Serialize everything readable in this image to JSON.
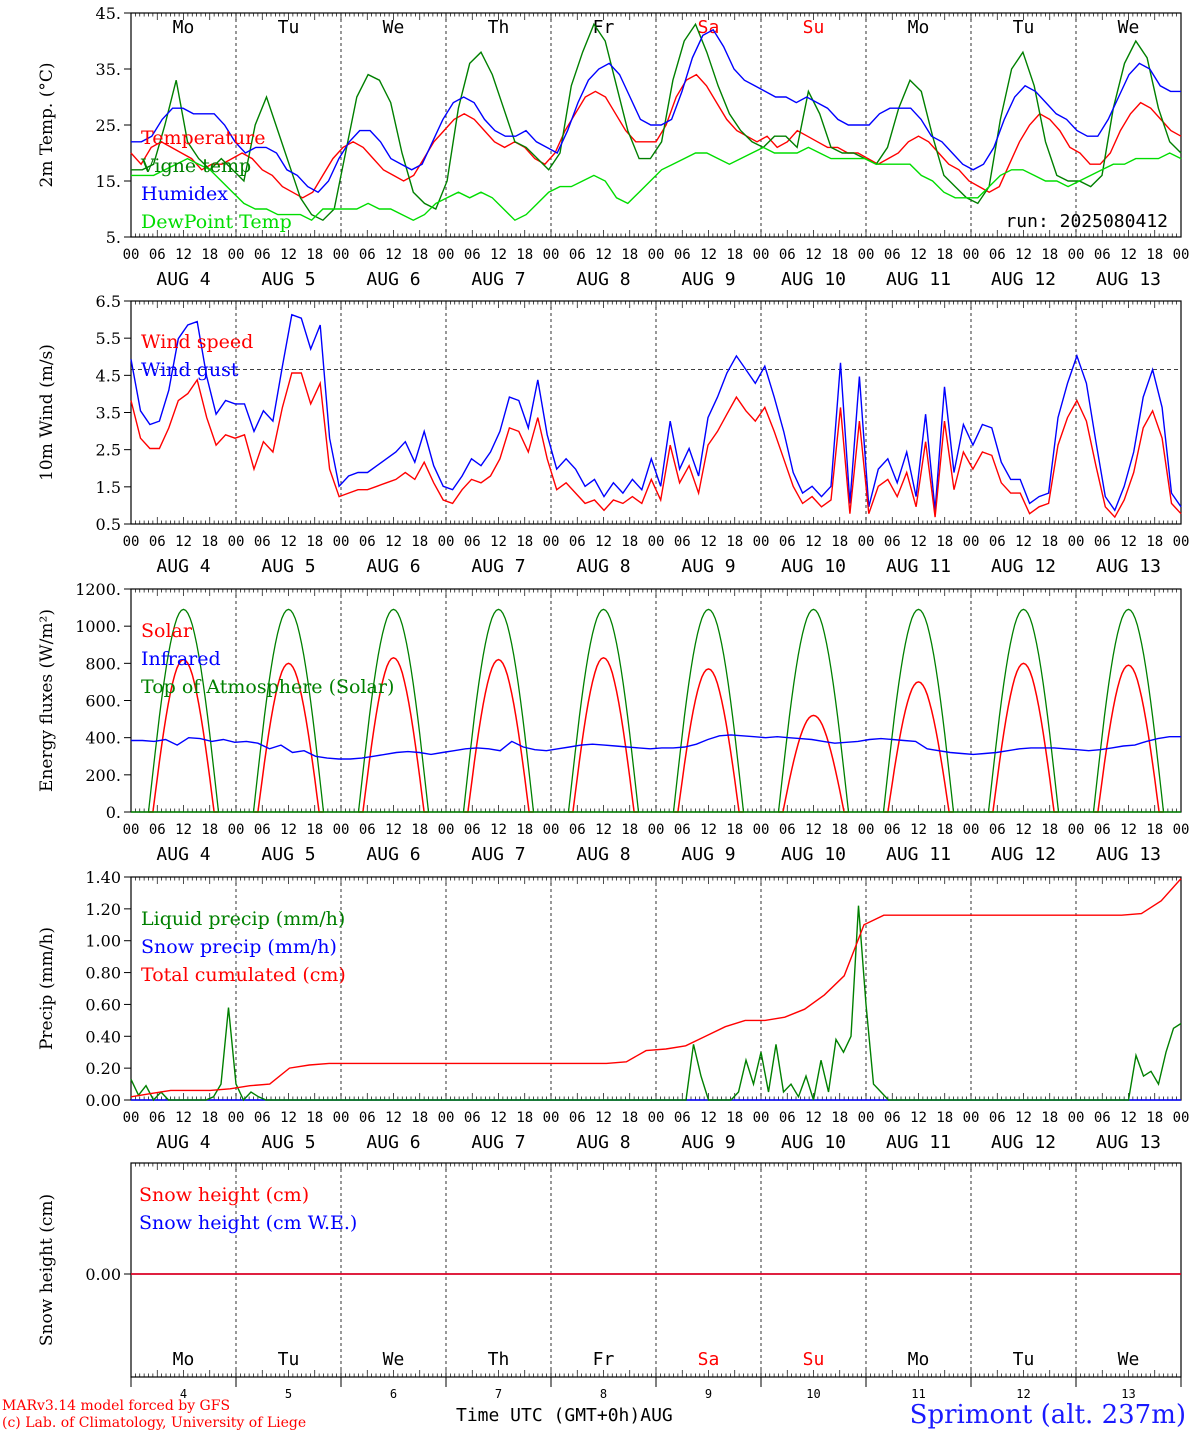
{
  "site": "Sprimont (alt. 237m)",
  "credit": [
    "MARv3.14 model forced by GFS",
    "(c) Lab. of Climatology, University of Liege"
  ],
  "time_axis": {
    "label": "Time UTC (GMT+0h)",
    "month": "AUG",
    "dates": [
      4,
      5,
      6,
      7,
      8,
      9,
      10,
      11,
      12,
      13
    ],
    "hour_ticks": [
      "00",
      "06",
      "12",
      "18"
    ],
    "weekdays": [
      "Mo",
      "Tu",
      "We",
      "Th",
      "Fr",
      "Sa",
      "Su",
      "Mo",
      "Tu",
      "We"
    ],
    "weekend_color": "#ff0000"
  },
  "chart_data": [
    {
      "type": "line",
      "ylabel": "2m Temp. (°C)",
      "ylim": [
        5,
        45
      ],
      "yticks": [
        "45.",
        "35.",
        "25.",
        "15.",
        "5."
      ],
      "run": "run: 2025080412",
      "series": [
        {
          "name": "Temperature",
          "color": "#ff0000",
          "values": [
            20,
            18,
            21,
            22,
            21,
            20,
            19,
            17,
            18,
            18,
            19,
            20,
            19,
            17,
            16,
            14,
            13,
            12,
            13,
            16,
            19,
            21,
            22,
            21,
            19,
            17,
            16,
            15,
            16,
            19,
            22,
            24,
            26,
            27,
            26,
            24,
            22,
            21,
            22,
            21,
            19,
            18,
            20,
            24,
            27,
            30,
            31,
            30,
            27,
            24,
            22,
            22,
            22,
            25,
            30,
            33,
            34,
            32,
            29,
            26,
            24,
            23,
            22,
            23,
            21,
            22,
            24,
            23,
            22,
            21,
            21,
            20,
            20,
            19,
            18,
            19,
            20,
            22,
            23,
            22,
            20,
            18,
            17,
            15,
            14,
            13,
            14,
            18,
            22,
            25,
            27,
            26,
            24,
            21,
            20,
            18,
            18,
            20,
            24,
            27,
            29,
            28,
            26,
            24,
            23
          ]
        },
        {
          "name": "Vigne temp",
          "color": "#008000",
          "values": [
            17,
            17,
            18,
            25,
            33,
            22,
            19,
            17,
            19,
            17,
            15,
            25,
            30,
            24,
            18,
            12,
            9,
            8,
            10,
            20,
            30,
            34,
            33,
            29,
            20,
            13,
            11,
            10,
            15,
            28,
            36,
            38,
            34,
            28,
            22,
            21,
            19,
            17,
            20,
            32,
            38,
            43,
            40,
            32,
            24,
            19,
            19,
            22,
            33,
            40,
            43,
            38,
            32,
            27,
            24,
            22,
            21,
            23,
            23,
            21,
            31,
            27,
            21,
            20,
            20,
            19,
            18,
            21,
            28,
            33,
            31,
            23,
            16,
            14,
            12,
            11,
            14,
            26,
            35,
            38,
            32,
            22,
            16,
            15,
            15,
            14,
            16,
            28,
            36,
            40,
            37,
            28,
            22,
            20
          ]
        },
        {
          "name": "Humidex",
          "color": "#0000ff",
          "values": [
            22,
            22,
            23,
            26,
            28,
            28,
            27,
            27,
            27,
            25,
            22,
            20,
            21,
            21,
            20,
            17,
            16,
            14,
            13,
            15,
            19,
            22,
            24,
            24,
            22,
            19,
            18,
            17,
            18,
            22,
            26,
            29,
            30,
            29,
            26,
            24,
            23,
            23,
            24,
            22,
            21,
            20,
            24,
            29,
            33,
            35,
            36,
            34,
            30,
            26,
            25,
            25,
            26,
            31,
            37,
            41,
            42,
            39,
            35,
            33,
            32,
            31,
            30,
            30,
            29,
            30,
            29,
            28,
            26,
            25,
            25,
            25,
            27,
            28,
            28,
            28,
            26,
            23,
            22,
            20,
            18,
            17,
            18,
            21,
            26,
            30,
            32,
            31,
            29,
            27,
            26,
            24,
            23,
            23,
            26,
            30,
            34,
            36,
            35,
            32,
            31,
            31
          ]
        },
        {
          "name": "DewPoint Temp",
          "color": "#00dd00",
          "values": [
            16,
            16,
            16,
            17,
            18,
            19,
            18,
            17,
            15,
            13,
            11,
            10,
            10,
            9,
            9,
            9,
            8,
            10,
            10,
            10,
            10,
            11,
            10,
            10,
            9,
            8,
            9,
            11,
            12,
            13,
            12,
            13,
            12,
            10,
            8,
            9,
            11,
            13,
            14,
            14,
            15,
            16,
            15,
            12,
            11,
            13,
            15,
            17,
            18,
            19,
            20,
            20,
            19,
            18,
            19,
            20,
            21,
            20,
            20,
            20,
            21,
            20,
            19,
            19,
            19,
            19,
            18,
            18,
            18,
            18,
            16,
            15,
            13,
            12,
            12,
            12,
            14,
            16,
            17,
            17,
            16,
            15,
            15,
            14,
            15,
            16,
            17,
            18,
            18,
            19,
            19,
            19,
            20,
            19
          ]
        }
      ]
    },
    {
      "type": "line",
      "ylabel": "10m Wind (m/s)",
      "ylim": [
        0.5,
        7.0
      ],
      "yticks": [
        "6.5",
        "5.5",
        "4.5",
        "3.5",
        "2.5",
        "1.5",
        "0.5"
      ],
      "reference_line": 5.0,
      "series": [
        {
          "name": "Wind speed",
          "color": "#ff0000",
          "values": [
            4.1,
            3.0,
            2.7,
            2.7,
            3.3,
            4.1,
            4.3,
            4.7,
            3.6,
            2.8,
            3.1,
            3.0,
            3.1,
            2.1,
            2.9,
            2.6,
            3.9,
            4.9,
            4.9,
            4.0,
            4.6,
            2.1,
            1.3,
            1.4,
            1.5,
            1.5,
            1.6,
            1.7,
            1.8,
            2.0,
            1.8,
            2.3,
            1.7,
            1.2,
            1.1,
            1.5,
            1.8,
            1.7,
            1.9,
            2.4,
            3.3,
            3.2,
            2.6,
            3.6,
            2.4,
            1.5,
            1.7,
            1.4,
            1.1,
            1.2,
            0.9,
            1.2,
            1.1,
            1.3,
            1.1,
            1.8,
            1.2,
            2.8,
            1.7,
            2.2,
            1.4,
            2.8,
            3.2,
            3.7,
            4.2,
            3.8,
            3.5,
            3.9,
            3.2,
            2.4,
            1.6,
            1.1,
            1.3,
            1.0,
            1.2,
            3.9,
            0.8,
            3.5,
            0.8,
            1.6,
            1.8,
            1.3,
            2.0,
            1.0,
            2.9,
            0.7,
            3.5,
            1.5,
            2.6,
            2.1,
            2.6,
            2.5,
            1.7,
            1.4,
            1.4,
            0.8,
            1.0,
            1.1,
            2.8,
            3.6,
            4.1,
            3.5,
            2.2,
            1.0,
            0.7,
            1.2,
            2.0,
            3.3,
            3.8,
            3.0,
            1.1,
            0.8
          ]
        },
        {
          "name": "Wind gust",
          "color": "#0000ff",
          "values": [
            5.3,
            3.8,
            3.4,
            3.5,
            4.4,
            5.9,
            6.3,
            6.4,
            4.8,
            3.7,
            4.1,
            4.0,
            4.0,
            3.2,
            3.8,
            3.5,
            5.1,
            6.6,
            6.5,
            5.6,
            6.3,
            3.0,
            1.6,
            1.9,
            2.0,
            2.0,
            2.2,
            2.4,
            2.6,
            2.9,
            2.3,
            3.2,
            2.2,
            1.6,
            1.5,
            1.9,
            2.4,
            2.2,
            2.6,
            3.2,
            4.2,
            4.1,
            3.3,
            4.7,
            3.1,
            2.1,
            2.4,
            2.1,
            1.6,
            1.8,
            1.3,
            1.7,
            1.4,
            1.8,
            1.5,
            2.4,
            1.6,
            3.5,
            2.1,
            2.7,
            1.9,
            3.6,
            4.2,
            4.9,
            5.4,
            5.0,
            4.6,
            5.1,
            4.2,
            3.2,
            2.0,
            1.4,
            1.6,
            1.3,
            1.6,
            5.2,
            1.1,
            4.8,
            1.0,
            2.1,
            2.4,
            1.7,
            2.6,
            1.3,
            3.7,
            0.9,
            4.5,
            2.0,
            3.4,
            2.8,
            3.4,
            3.3,
            2.3,
            1.8,
            1.8,
            1.1,
            1.3,
            1.4,
            3.6,
            4.6,
            5.4,
            4.6,
            2.9,
            1.3,
            0.9,
            1.6,
            2.6,
            4.2,
            5.0,
            3.9,
            1.4,
            1.0
          ]
        }
      ]
    },
    {
      "type": "line",
      "ylabel": "Energy fluxes (W/m²)",
      "ylim": [
        0,
        1200
      ],
      "yticks": [
        "1200.",
        "1000.",
        "800.",
        "600.",
        "400.",
        "200.",
        "0."
      ],
      "series": [
        {
          "name": "Solar",
          "color": "#ff0000",
          "peaks": [
            820,
            800,
            830,
            820,
            830,
            770,
            520,
            700,
            800,
            790
          ]
        },
        {
          "name": "Infrared",
          "color": "#0000ff",
          "values": [
            385,
            385,
            380,
            390,
            360,
            400,
            395,
            380,
            390,
            375,
            380,
            370,
            340,
            360,
            320,
            330,
            300,
            290,
            285,
            285,
            290,
            300,
            310,
            320,
            325,
            320,
            310,
            320,
            330,
            340,
            345,
            340,
            330,
            380,
            350,
            335,
            330,
            340,
            350,
            360,
            365,
            360,
            355,
            350,
            345,
            340,
            345,
            345,
            350,
            365,
            390,
            410,
            415,
            410,
            405,
            400,
            405,
            400,
            395,
            390,
            380,
            370,
            375,
            380,
            390,
            395,
            390,
            385,
            380,
            340,
            330,
            320,
            315,
            310,
            315,
            320,
            330,
            340,
            345,
            345,
            345,
            340,
            335,
            330,
            335,
            345,
            355,
            360,
            380,
            395,
            405,
            405
          ]
        },
        {
          "name": "Top of Atmosphere (Solar)",
          "color": "#008000",
          "peak": 1090
        }
      ]
    },
    {
      "type": "line",
      "ylabel": "Precip (mm/h)",
      "ylim": [
        0,
        1.4
      ],
      "yticks": [
        "1.40",
        "1.20",
        "1.00",
        "0.80",
        "0.60",
        "0.40",
        "0.20",
        "0.00"
      ],
      "series": [
        {
          "name": "Liquid precip (mm/h)",
          "color": "#008000",
          "values": [
            0.13,
            0.03,
            0.09,
            0.0,
            0.05,
            0.0,
            0.0,
            0.0,
            0.0,
            0.0,
            0.0,
            0.02,
            0.1,
            0.58,
            0.1,
            0.0,
            0.05,
            0.02,
            0.0,
            0.0,
            0.0,
            0.0,
            0.0,
            0.0,
            0.0,
            0.0,
            0.0,
            0.0,
            0.0,
            0.0,
            0.0,
            0.0,
            0.0,
            0.0,
            0.0,
            0.0,
            0.0,
            0.0,
            0.0,
            0.0,
            0.0,
            0.0,
            0.0,
            0.0,
            0.0,
            0.0,
            0.0,
            0.0,
            0.0,
            0.0,
            0.0,
            0.0,
            0.0,
            0.0,
            0.0,
            0.0,
            0.0,
            0.0,
            0.0,
            0.0,
            0.0,
            0.0,
            0.0,
            0.0,
            0.0,
            0.0,
            0.0,
            0.0,
            0.0,
            0.0,
            0.0,
            0.0,
            0.0,
            0.0,
            0.0,
            0.35,
            0.15,
            0.0,
            0.0,
            0.0,
            0.0,
            0.05,
            0.25,
            0.1,
            0.3,
            0.05,
            0.35,
            0.05,
            0.1,
            0.02,
            0.15,
            0.0,
            0.25,
            0.05,
            0.38,
            0.3,
            0.4,
            1.22,
            0.6,
            0.1,
            0.05,
            0.0,
            0.0,
            0.0,
            0.0,
            0.0,
            0.0,
            0.0,
            0.0,
            0.0,
            0.0,
            0.0,
            0.0,
            0.0,
            0.0,
            0.0,
            0.0,
            0.0,
            0.0,
            0.0,
            0.0,
            0.0,
            0.0,
            0.0,
            0.0,
            0.0,
            0.0,
            0.0,
            0.0,
            0.0,
            0.0,
            0.0,
            0.0,
            0.0,
            0.28,
            0.15,
            0.18,
            0.1,
            0.3,
            0.45,
            0.48
          ]
        },
        {
          "name": "Snow precip (mm/h)",
          "color": "#0000ff",
          "values": [
            0,
            0
          ]
        },
        {
          "name": "Total cumulated (cm)",
          "color": "#ff0000",
          "values": [
            0.02,
            0.04,
            0.06,
            0.06,
            0.06,
            0.07,
            0.09,
            0.1,
            0.2,
            0.22,
            0.23,
            0.23,
            0.23,
            0.23,
            0.23,
            0.23,
            0.23,
            0.23,
            0.23,
            0.23,
            0.23,
            0.23,
            0.23,
            0.23,
            0.23,
            0.24,
            0.31,
            0.32,
            0.34,
            0.4,
            0.46,
            0.5,
            0.5,
            0.52,
            0.57,
            0.66,
            0.78,
            1.1,
            1.16,
            1.16,
            1.16,
            1.16,
            1.16,
            1.16,
            1.16,
            1.16,
            1.16,
            1.16,
            1.16,
            1.16,
            1.16,
            1.17,
            1.25,
            1.39
          ]
        }
      ]
    },
    {
      "type": "line",
      "ylabel": "Snow height (cm)",
      "yticks": [
        "0.00"
      ],
      "series": [
        {
          "name": "Snow height (cm)",
          "color": "#ff0000",
          "values": [
            0,
            0
          ]
        },
        {
          "name": "Snow height (cm W.E.)",
          "color": "#0000ff",
          "values": [
            0,
            0
          ]
        }
      ]
    }
  ]
}
